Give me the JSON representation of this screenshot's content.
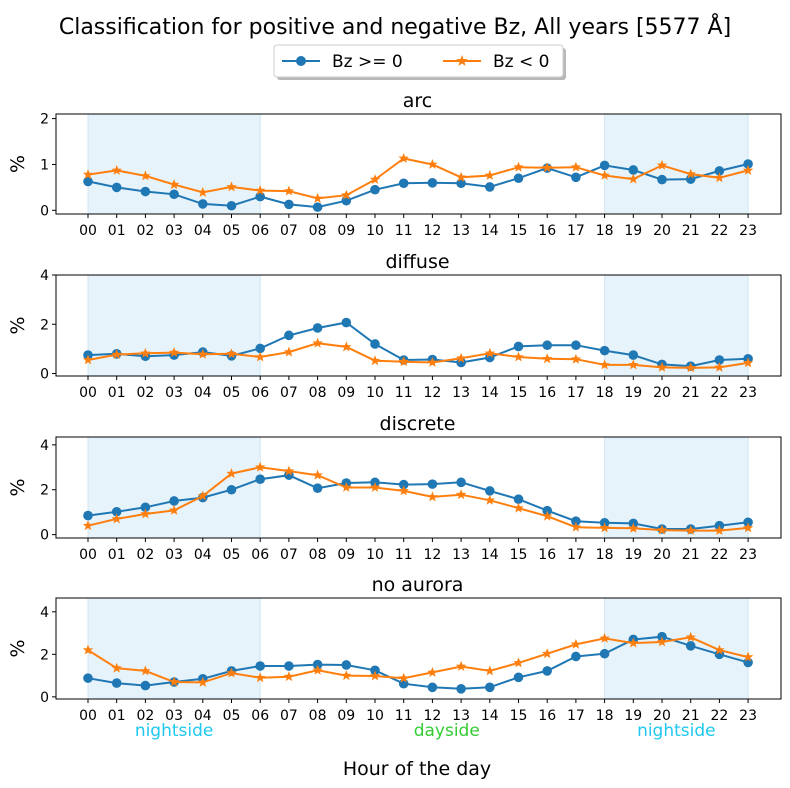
{
  "figure": {
    "title": "Classification for positive and negative Bz, All years [5577 Å]",
    "xlabel": "Hour of the day",
    "region_labels": [
      {
        "text": "nightside",
        "hour": 3,
        "color": "#1ec8f0"
      },
      {
        "text": "dayside",
        "hour": 12.5,
        "color": "#33cc33"
      },
      {
        "text": "nightside",
        "hour": 20.5,
        "color": "#1ec8f0"
      }
    ],
    "shaded_ranges": [
      [
        0,
        6
      ],
      [
        18,
        23
      ]
    ],
    "shade_color": "#e6f3fb",
    "legend": {
      "placement": "top-center"
    }
  },
  "chart_data": [
    {
      "type": "line",
      "title": "arc",
      "ylabel": "%",
      "ylim": [
        -0.08,
        2.1
      ],
      "yticks": [
        0,
        1,
        2
      ],
      "categories": [
        "00",
        "01",
        "02",
        "03",
        "04",
        "05",
        "06",
        "07",
        "08",
        "09",
        "10",
        "11",
        "12",
        "13",
        "14",
        "15",
        "16",
        "17",
        "18",
        "19",
        "20",
        "21",
        "22",
        "23"
      ],
      "series": [
        {
          "name": "Bz >= 0",
          "color": "#1f77b4",
          "marker": "circle",
          "values": [
            0.63,
            0.5,
            0.41,
            0.35,
            0.14,
            0.1,
            0.3,
            0.13,
            0.07,
            0.21,
            0.45,
            0.59,
            0.6,
            0.59,
            0.51,
            0.7,
            0.92,
            0.72,
            0.98,
            0.88,
            0.67,
            0.68,
            0.86,
            1.01
          ]
        },
        {
          "name": "Bz < 0",
          "color": "#ff7f0e",
          "marker": "star",
          "values": [
            0.78,
            0.87,
            0.75,
            0.56,
            0.39,
            0.51,
            0.43,
            0.42,
            0.26,
            0.33,
            0.67,
            1.13,
            1.0,
            0.72,
            0.76,
            0.94,
            0.93,
            0.94,
            0.76,
            0.68,
            0.98,
            0.79,
            0.71,
            0.87
          ]
        }
      ]
    },
    {
      "type": "line",
      "title": "diffuse",
      "ylabel": "%",
      "ylim": [
        -0.1,
        4.0
      ],
      "yticks": [
        0,
        2,
        4
      ],
      "categories": [
        "00",
        "01",
        "02",
        "03",
        "04",
        "05",
        "06",
        "07",
        "08",
        "09",
        "10",
        "11",
        "12",
        "13",
        "14",
        "15",
        "16",
        "17",
        "18",
        "19",
        "20",
        "21",
        "22",
        "23"
      ],
      "series": [
        {
          "name": "Bz >= 0",
          "color": "#1f77b4",
          "marker": "circle",
          "values": [
            0.75,
            0.8,
            0.7,
            0.75,
            0.87,
            0.72,
            1.02,
            1.55,
            1.85,
            2.07,
            1.2,
            0.55,
            0.57,
            0.45,
            0.65,
            1.1,
            1.15,
            1.15,
            0.93,
            0.75,
            0.37,
            0.3,
            0.55,
            0.6
          ]
        },
        {
          "name": "Bz < 0",
          "color": "#ff7f0e",
          "marker": "star",
          "values": [
            0.55,
            0.77,
            0.82,
            0.85,
            0.78,
            0.8,
            0.67,
            0.87,
            1.23,
            1.08,
            0.52,
            0.48,
            0.45,
            0.62,
            0.82,
            0.67,
            0.6,
            0.58,
            0.35,
            0.35,
            0.25,
            0.23,
            0.25,
            0.43
          ]
        }
      ]
    },
    {
      "type": "line",
      "title": "discrete",
      "ylabel": "%",
      "ylim": [
        -0.15,
        4.35
      ],
      "yticks": [
        0,
        2,
        4
      ],
      "categories": [
        "00",
        "01",
        "02",
        "03",
        "04",
        "05",
        "06",
        "07",
        "08",
        "09",
        "10",
        "11",
        "12",
        "13",
        "14",
        "15",
        "16",
        "17",
        "18",
        "19",
        "20",
        "21",
        "22",
        "23"
      ],
      "series": [
        {
          "name": "Bz >= 0",
          "color": "#1f77b4",
          "marker": "circle",
          "values": [
            0.85,
            1.02,
            1.22,
            1.5,
            1.65,
            2.0,
            2.47,
            2.65,
            2.07,
            2.3,
            2.33,
            2.23,
            2.25,
            2.33,
            1.95,
            1.58,
            1.07,
            0.6,
            0.53,
            0.5,
            0.25,
            0.25,
            0.4,
            0.55
          ]
        },
        {
          "name": "Bz < 0",
          "color": "#ff7f0e",
          "marker": "star",
          "values": [
            0.4,
            0.7,
            0.92,
            1.08,
            1.72,
            2.72,
            3.0,
            2.83,
            2.65,
            2.1,
            2.1,
            1.95,
            1.68,
            1.78,
            1.53,
            1.18,
            0.82,
            0.33,
            0.3,
            0.28,
            0.2,
            0.18,
            0.18,
            0.3
          ]
        }
      ]
    },
    {
      "type": "line",
      "title": "no aurora",
      "ylabel": "%",
      "ylim": [
        -0.1,
        4.65
      ],
      "yticks": [
        0,
        2,
        4
      ],
      "categories": [
        "00",
        "01",
        "02",
        "03",
        "04",
        "05",
        "06",
        "07",
        "08",
        "09",
        "10",
        "11",
        "12",
        "13",
        "14",
        "15",
        "16",
        "17",
        "18",
        "19",
        "20",
        "21",
        "22",
        "23"
      ],
      "series": [
        {
          "name": "Bz >= 0",
          "color": "#1f77b4",
          "marker": "circle",
          "values": [
            0.88,
            0.65,
            0.53,
            0.7,
            0.85,
            1.22,
            1.45,
            1.45,
            1.52,
            1.5,
            1.25,
            0.62,
            0.45,
            0.38,
            0.45,
            0.92,
            1.22,
            1.9,
            2.03,
            2.7,
            2.83,
            2.4,
            2.0,
            1.62
          ]
        },
        {
          "name": "Bz < 0",
          "color": "#ff7f0e",
          "marker": "star",
          "values": [
            2.2,
            1.35,
            1.22,
            0.7,
            0.68,
            1.12,
            0.9,
            0.95,
            1.25,
            1.0,
            0.98,
            0.88,
            1.15,
            1.43,
            1.22,
            1.6,
            2.03,
            2.47,
            2.75,
            2.53,
            2.58,
            2.8,
            2.2,
            1.87
          ]
        }
      ]
    }
  ]
}
